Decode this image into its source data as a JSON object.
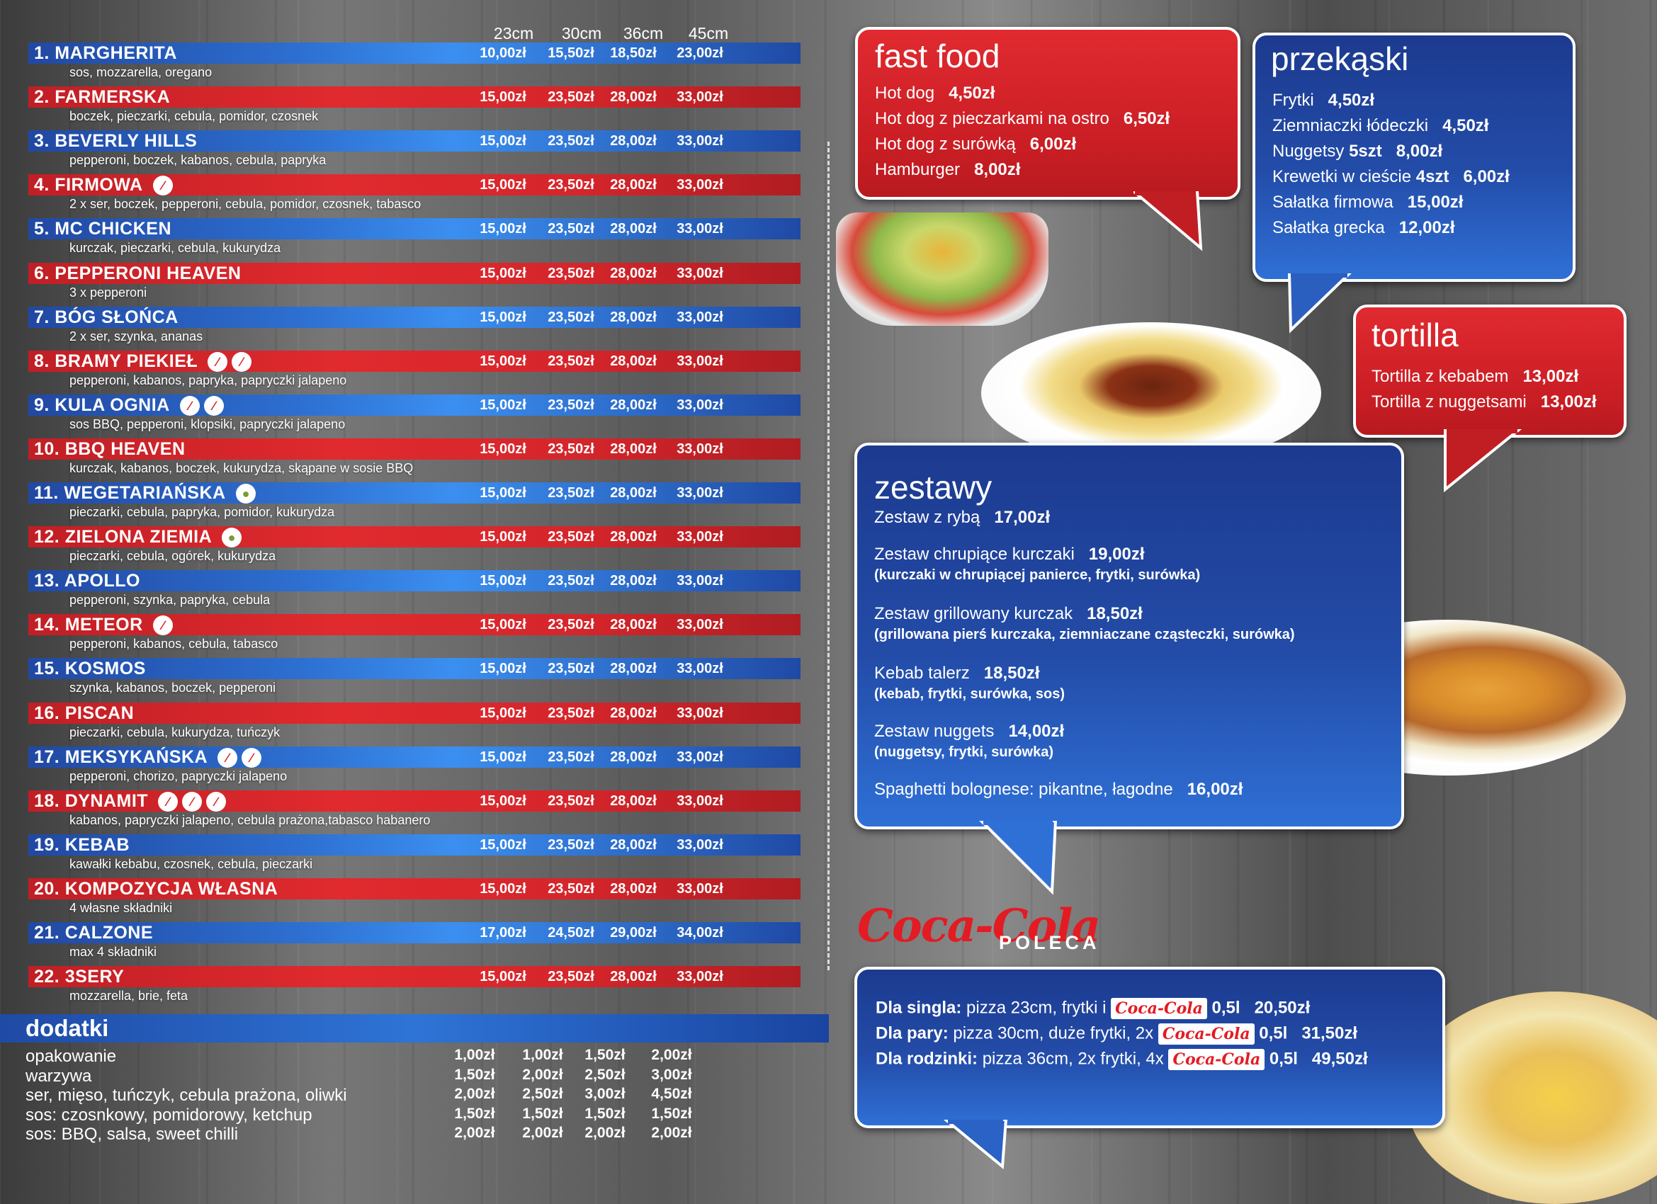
{
  "sizes": [
    "23cm",
    "30cm",
    "36cm",
    "45cm"
  ],
  "pizzas": [
    {
      "name": "1. MARGHERITA",
      "desc": "sos, mozzarella, oregano",
      "prices": [
        "10,00zł",
        "15,50zł",
        "18,50zł",
        "23,00zł"
      ],
      "color": "blue",
      "icons": []
    },
    {
      "name": "2. FARMERSKA",
      "desc": "boczek, pieczarki, cebula, pomidor, czosnek",
      "prices": [
        "15,00zł",
        "23,50zł",
        "28,00zł",
        "33,00zł"
      ],
      "color": "red",
      "icons": []
    },
    {
      "name": "3. BEVERLY HILLS",
      "desc": "pepperoni, boczek, kabanos, cebula, papryka",
      "prices": [
        "15,00zł",
        "23,50zł",
        "28,00zł",
        "33,00zł"
      ],
      "color": "blue",
      "icons": []
    },
    {
      "name": "4. FIRMOWA",
      "desc": "2 x ser, boczek, pepperoni, cebula, pomidor, czosnek, tabasco",
      "prices": [
        "15,00zł",
        "23,50zł",
        "28,00zł",
        "33,00zł"
      ],
      "color": "red",
      "icons": [
        "chili"
      ]
    },
    {
      "name": "5. MC CHICKEN",
      "desc": "kurczak, pieczarki, cebula, kukurydza",
      "prices": [
        "15,00zł",
        "23,50zł",
        "28,00zł",
        "33,00zł"
      ],
      "color": "blue",
      "icons": []
    },
    {
      "name": "6. PEPPERONI HEAVEN",
      "desc": "3 x pepperoni",
      "prices": [
        "15,00zł",
        "23,50zł",
        "28,00zł",
        "33,00zł"
      ],
      "color": "red",
      "icons": []
    },
    {
      "name": "7. BÓG SŁOŃCA",
      "desc": "2 x ser, szynka, ananas",
      "prices": [
        "15,00zł",
        "23,50zł",
        "28,00zł",
        "33,00zł"
      ],
      "color": "blue",
      "icons": []
    },
    {
      "name": "8. BRAMY PIEKIEŁ",
      "desc": "pepperoni, kabanos, papryka, papryczki jalapeno",
      "prices": [
        "15,00zł",
        "23,50zł",
        "28,00zł",
        "33,00zł"
      ],
      "color": "red",
      "icons": [
        "chili",
        "chili"
      ]
    },
    {
      "name": "9. KULA OGNIA",
      "desc": "sos BBQ, pepperoni, klopsiki, papryczki jalapeno",
      "prices": [
        "15,00zł",
        "23,50zł",
        "28,00zł",
        "33,00zł"
      ],
      "color": "blue",
      "icons": [
        "chili",
        "chili"
      ]
    },
    {
      "name": "10. BBQ HEAVEN",
      "desc": "kurczak, kabanos, boczek, kukurydza, skąpane w sosie BBQ",
      "prices": [
        "15,00zł",
        "23,50zł",
        "28,00zł",
        "33,00zł"
      ],
      "color": "red",
      "icons": []
    },
    {
      "name": "11. WEGETARIAŃSKA",
      "desc": "pieczarki, cebula, papryka, pomidor, kukurydza",
      "prices": [
        "15,00zł",
        "23,50zł",
        "28,00zł",
        "33,00zł"
      ],
      "color": "blue",
      "icons": [
        "veg"
      ]
    },
    {
      "name": "12. ZIELONA ZIEMIA",
      "desc": "pieczarki, cebula, ogórek, kukurydza",
      "prices": [
        "15,00zł",
        "23,50zł",
        "28,00zł",
        "33,00zł"
      ],
      "color": "red",
      "icons": [
        "veg"
      ]
    },
    {
      "name": "13. APOLLO",
      "desc": "pepperoni, szynka, papryka, cebula",
      "prices": [
        "15,00zł",
        "23,50zł",
        "28,00zł",
        "33,00zł"
      ],
      "color": "blue",
      "icons": []
    },
    {
      "name": "14. METEOR",
      "desc": "pepperoni, kabanos, cebula, tabasco",
      "prices": [
        "15,00zł",
        "23,50zł",
        "28,00zł",
        "33,00zł"
      ],
      "color": "red",
      "icons": [
        "chili"
      ]
    },
    {
      "name": "15. KOSMOS",
      "desc": "szynka, kabanos, boczek, pepperoni",
      "prices": [
        "15,00zł",
        "23,50zł",
        "28,00zł",
        "33,00zł"
      ],
      "color": "blue",
      "icons": []
    },
    {
      "name": "16. PISCAN",
      "desc": "pieczarki, cebula, kukurydza, tuńczyk",
      "prices": [
        "15,00zł",
        "23,50zł",
        "28,00zł",
        "33,00zł"
      ],
      "color": "red",
      "icons": []
    },
    {
      "name": "17. MEKSYKAŃSKA",
      "desc": "pepperoni, chorizo, papryczki jalapeno",
      "prices": [
        "15,00zł",
        "23,50zł",
        "28,00zł",
        "33,00zł"
      ],
      "color": "blue",
      "icons": [
        "chili",
        "chili"
      ]
    },
    {
      "name": "18. DYNAMIT",
      "desc": "kabanos, papryczki jalapeno, cebula prażona,tabasco habanero",
      "prices": [
        "15,00zł",
        "23,50zł",
        "28,00zł",
        "33,00zł"
      ],
      "color": "red",
      "icons": [
        "chili",
        "chili",
        "chili"
      ]
    },
    {
      "name": "19. KEBAB",
      "desc": "kawałki kebabu, czosnek, cebula, pieczarki",
      "prices": [
        "15,00zł",
        "23,50zł",
        "28,00zł",
        "33,00zł"
      ],
      "color": "blue",
      "icons": []
    },
    {
      "name": "20. KOMPOZYCJA WŁASNA",
      "desc": "4 własne składniki",
      "prices": [
        "15,00zł",
        "23,50zł",
        "28,00zł",
        "33,00zł"
      ],
      "color": "red",
      "icons": []
    },
    {
      "name": "21. CALZONE",
      "desc": "max 4 składniki",
      "prices": [
        "17,00zł",
        "24,50zł",
        "29,00zł",
        "34,00zł"
      ],
      "color": "blue",
      "icons": []
    },
    {
      "name": "22. 3SERY",
      "desc": "mozzarella, brie, feta",
      "prices": [
        "15,00zł",
        "23,50zł",
        "28,00zł",
        "33,00zł"
      ],
      "color": "red",
      "icons": []
    }
  ],
  "dodatki": {
    "title": "dodatki",
    "items": [
      {
        "name": "opakowanie",
        "prices": [
          "1,00zł",
          "1,00zł",
          "1,50zł",
          "2,00zł"
        ]
      },
      {
        "name": "warzywa",
        "prices": [
          "1,50zł",
          "2,00zł",
          "2,50zł",
          "3,00zł"
        ]
      },
      {
        "name": "ser, mięso, tuńczyk, cebula prażona, oliwki",
        "prices": [
          "2,00zł",
          "2,50zł",
          "3,00zł",
          "4,50zł"
        ]
      },
      {
        "name": "sos: czosnkowy, pomidorowy, ketchup",
        "prices": [
          "1,50zł",
          "1,50zł",
          "1,50zł",
          "1,50zł"
        ]
      },
      {
        "name": "sos: BBQ, salsa, sweet chilli",
        "prices": [
          "2,00zł",
          "2,00zł",
          "2,00zł",
          "2,00zł"
        ]
      }
    ]
  },
  "fastfood": {
    "title": "fast food",
    "items": [
      {
        "name": "Hot dog",
        "price": "4,50zł"
      },
      {
        "name": "Hot dog z pieczarkami na ostro",
        "price": "6,50zł"
      },
      {
        "name": "Hot dog z surówką",
        "price": "6,00zł"
      },
      {
        "name": "Hamburger",
        "price": "8,00zł"
      }
    ]
  },
  "przekaski": {
    "title": "przekąski",
    "items": [
      {
        "name": "Frytki",
        "price": "4,50zł"
      },
      {
        "name": "Ziemniaczki łódeczki",
        "price": "4,50zł"
      },
      {
        "name": "Nuggetsy",
        "qty": "5szt",
        "price": "8,00zł"
      },
      {
        "name": "Krewetki w cieście",
        "qty": "4szt",
        "price": "6,00zł"
      },
      {
        "name": "Sałatka firmowa",
        "price": "15,00zł"
      },
      {
        "name": "Sałatka grecka",
        "price": "12,00zł"
      }
    ]
  },
  "tortilla": {
    "title": "tortilla",
    "items": [
      {
        "name": "Tortilla z kebabem",
        "price": "13,00zł"
      },
      {
        "name": "Tortilla z nuggetsami",
        "price": "13,00zł"
      }
    ]
  },
  "zestawy": {
    "title": "zestawy",
    "items": [
      {
        "name": "Zestaw z rybą",
        "price": "17,00zł",
        "sub": ""
      },
      {
        "name": "Zestaw chrupiące kurczaki",
        "price": "19,00zł",
        "sub": "(kurczaki w chrupiącej panierce, frytki, surówka)"
      },
      {
        "name": "Zestaw grillowany kurczak",
        "price": "18,50zł",
        "sub": "(grillowana pierś kurczaka, ziemniaczane cząsteczki, surówka)"
      },
      {
        "name": "Kebab talerz",
        "price": "18,50zł",
        "sub": "(kebab, frytki, surówka, sos)"
      },
      {
        "name": "Zestaw nuggets",
        "price": "14,00zł",
        "sub": "(nuggetsy, frytki, surówka)"
      },
      {
        "name": "Spaghetti bolognese: pikantne, łagodne",
        "price": "16,00zł",
        "sub": ""
      }
    ]
  },
  "cocacola": {
    "logo": "Coca-Cola",
    "poleca": "POLECA",
    "deals": [
      {
        "who": "Dla singla:",
        "text": "pizza 23cm, frytki i",
        "size": "0,5l",
        "price": "20,50zł"
      },
      {
        "who": "Dla pary:",
        "text": "pizza 30cm, duże frytki, 2x",
        "size": "0,5l",
        "price": "31,50zł"
      },
      {
        "who": "Dla rodzinki:",
        "text": "pizza 36cm, 2x frytki, 4x",
        "size": "0,5l",
        "price": "49,50zł"
      }
    ],
    "label": "Coca-Cola"
  },
  "colors": {
    "red": "#d6262b",
    "blue": "#234ca8",
    "white": "#ffffff"
  }
}
